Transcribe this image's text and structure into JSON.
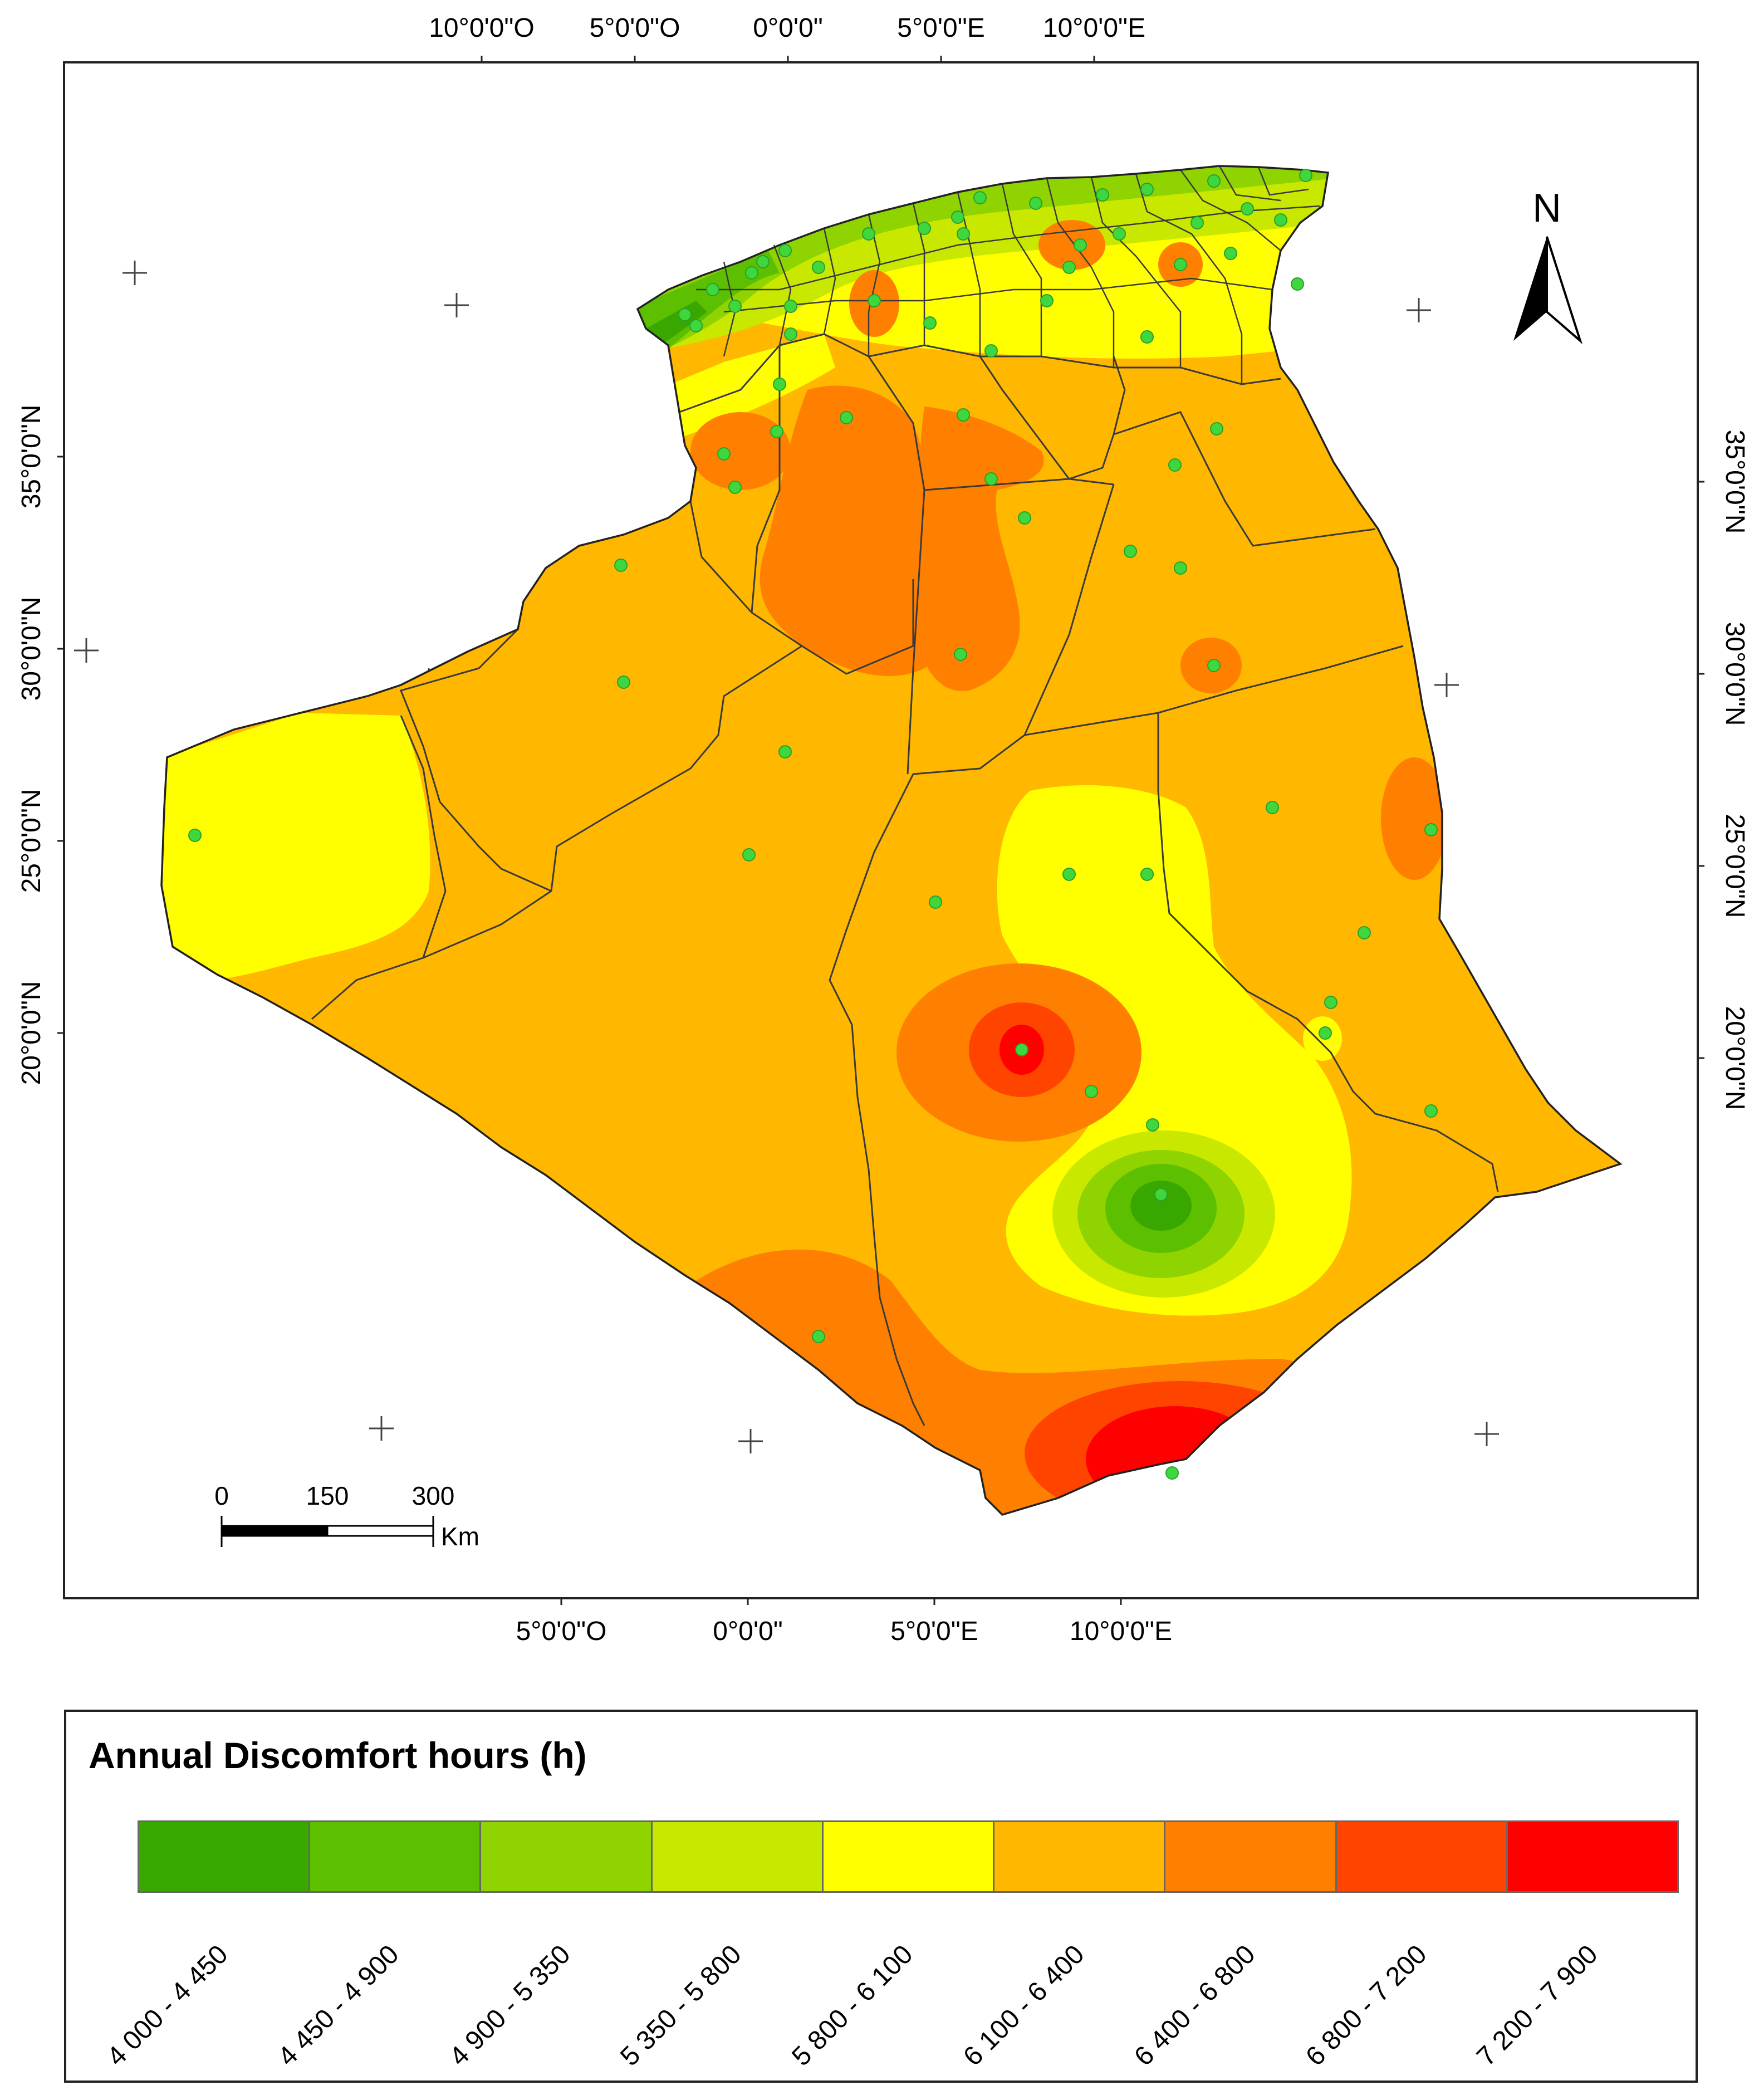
{
  "map": {
    "top_ticks": [
      {
        "label": "10°0'0\"O",
        "lon": -10
      },
      {
        "label": "5°0'0\"O",
        "lon": -5
      },
      {
        "label": "0°0'0\"",
        "lon": 0
      },
      {
        "label": "5°0'0\"E",
        "lon": 5
      },
      {
        "label": "10°0'0\"E",
        "lon": 10
      }
    ],
    "bottom_ticks": [
      {
        "label": "5°0'0\"O",
        "lon": -5
      },
      {
        "label": "0°0'0\"",
        "lon": 0
      },
      {
        "label": "5°0'0\"E",
        "lon": 5
      },
      {
        "label": "10°0'0\"E",
        "lon": 10
      }
    ],
    "left_ticks": [
      {
        "label": "35°0'0\"N",
        "lat": 35
      },
      {
        "label": "30°0'0\"N",
        "lat": 30
      },
      {
        "label": "25°0'0\"N",
        "lat": 25
      },
      {
        "label": "20°0'0\"N",
        "lat": 20
      }
    ],
    "right_ticks": [
      {
        "label": "35°0'0\"N",
        "lat": 35
      },
      {
        "label": "30°0'0\"N",
        "lat": 30
      },
      {
        "label": "25°0'0\"N",
        "lat": 25
      },
      {
        "label": "20°0'0\"N",
        "lat": 20
      }
    ],
    "north_arrow": "N",
    "scale_bar": {
      "labels": [
        "0",
        "150",
        "300"
      ],
      "unit": "Km"
    },
    "station_color": "#3ed83e"
  },
  "legend": {
    "title": "Annual Discomfort hours (h)",
    "classes": [
      {
        "range": "4 000 - 4 450",
        "color": "#38a800"
      },
      {
        "range": "4 450 - 4 900",
        "color": "#5cbf00"
      },
      {
        "range": "4 900 - 5 350",
        "color": "#8fd400"
      },
      {
        "range": "5 350 - 5 800",
        "color": "#c8e800"
      },
      {
        "range": "5 800 - 6 100",
        "color": "#ffff00"
      },
      {
        "range": "6 100 - 6 400",
        "color": "#ffb700"
      },
      {
        "range": "6 400 - 6 800",
        "color": "#ff8000"
      },
      {
        "range": "6 800 - 7 200",
        "color": "#ff4400"
      },
      {
        "range": "7 200 - 7 900",
        "color": "#ff0000"
      }
    ]
  }
}
